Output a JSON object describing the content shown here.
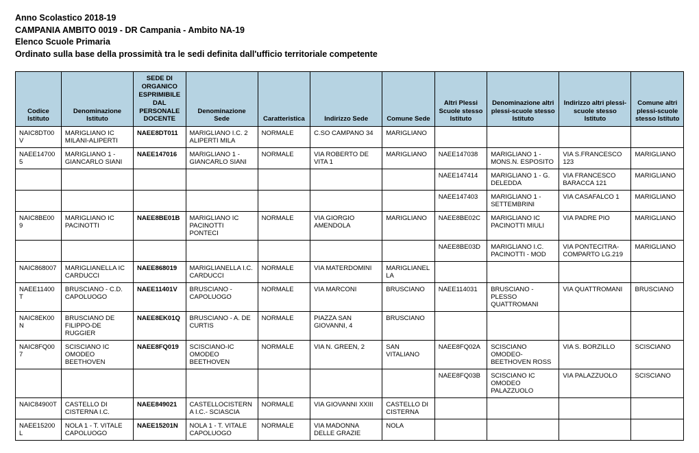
{
  "header": {
    "line1": "Anno Scolastico 2018-19",
    "line2": "CAMPANIA AMBITO 0019 - DR Campania - Ambito NA-19",
    "line3": "Elenco Scuole Primaria",
    "line4": "Ordinato sulla base della prossimità tra le sedi definita dall'ufficio territoriale competente"
  },
  "table": {
    "columns": [
      "Codice Istituto",
      "Denominazione Istituto",
      "SEDE DI ORGANICO ESPRIMIBILE DAL PERSONALE DOCENTE",
      "Denominazione Sede",
      "Caratteristica",
      "Indirizzo Sede",
      "Comune Sede",
      "Altri Plessi Scuole stesso Istituto",
      "Denominazione altri plessi-scuole stesso Istituto",
      "Indirizzo altri plessi-scuole stesso Istituto",
      "Comune altri plessi-scuole stesso Istituto"
    ],
    "rows": [
      [
        "NAIC8DT00V",
        "MARIGLIANO IC MILANI-ALIPERTI",
        "NAEE8DT011",
        "MARIGLIANO I.C. 2 ALIPERTI MILA",
        "NORMALE",
        "C.SO CAMPANO 34",
        "MARIGLIANO",
        "",
        "",
        "",
        ""
      ],
      [
        "NAEE147005",
        "MARIGLIANO 1 - GIANCARLO SIANI",
        "NAEE147016",
        "MARIGLIANO 1 - GIANCARLO SIANI",
        "NORMALE",
        "VIA ROBERTO DE VITA 1",
        "MARIGLIANO",
        "NAEE147038",
        "MARIGLIANO 1 - MONS.N. ESPOSITO",
        "VIA S.FRANCESCO 123",
        "MARIGLIANO"
      ],
      [
        "",
        "",
        "",
        "",
        "",
        "",
        "",
        "NAEE147414",
        "MARIGLIANO 1 - G. DELEDDA",
        "VIA FRANCESCO BARACCA 121",
        "MARIGLIANO"
      ],
      [
        "",
        "",
        "",
        "",
        "",
        "",
        "",
        "NAEE147403",
        "MARIGLIANO 1 - SETTEMBRINI",
        "VIA CASAFALCO 1",
        "MARIGLIANO"
      ],
      [
        "NAIC8BE009",
        "MARIGLIANO IC PACINOTTI",
        "NAEE8BE01B",
        "MARIGLIANO IC PACINOTTI PONTECI",
        "NORMALE",
        "VIA GIORGIO AMENDOLA",
        "MARIGLIANO",
        "NAEE8BE02C",
        "MARIGLIANO IC PACINOTTI MIULI",
        "VIA PADRE PIO",
        "MARIGLIANO"
      ],
      [
        "",
        "",
        "",
        "",
        "",
        "",
        "",
        "NAEE8BE03D",
        "MARIGLIANO I.C. PACINOTTI - MOD",
        "VIA PONTECITRA-COMPARTO LG.219",
        "MARIGLIANO"
      ],
      [
        "NAIC868007",
        "MARIGLIANELLA IC CARDUCCI",
        "NAEE868019",
        "MARIGLIANELLA I.C. CARDUCCI",
        "NORMALE",
        "VIA MATERDOMINI",
        "MARIGLIANELLA",
        "",
        "",
        "",
        ""
      ],
      [
        "NAEE11400T",
        "BRUSCIANO - C.D. CAPOLUOGO",
        "NAEE11401V",
        "BRUSCIANO - CAPOLUOGO",
        "NORMALE",
        "VIA MARCONI",
        "BRUSCIANO",
        "NAEE114031",
        "BRUSCIANO - PLESSO QUATTROMANI",
        "VIA QUATTROMANI",
        "BRUSCIANO"
      ],
      [
        "NAIC8EK00N",
        "BRUSCIANO DE FILIPPO-DE RUGGIER",
        "NAEE8EK01Q",
        "BRUSCIANO - A. DE CURTIS",
        "NORMALE",
        "PIAZZA SAN GIOVANNI, 4",
        "BRUSCIANO",
        "",
        "",
        "",
        ""
      ],
      [
        "NAIC8FQ007",
        "SCISCIANO IC OMODEO BEETHOVEN",
        "NAEE8FQ019",
        "SCISCIANO-IC OMODEO BEETHOVEN",
        "NORMALE",
        "VIA N. GREEN, 2",
        "SAN VITALIANO",
        "NAEE8FQ02A",
        "SCISCIANO OMODEO-BEETHOVEN ROSS",
        "VIA S. BORZILLO",
        "SCISCIANO"
      ],
      [
        "",
        "",
        "",
        "",
        "",
        "",
        "",
        "NAEE8FQ03B",
        "SCISCIANO IC OMODEO PALAZZUOLO",
        "VIA PALAZZUOLO",
        "SCISCIANO"
      ],
      [
        "NAIC84900T",
        "CASTELLO DI CISTERNA I.C.",
        "NAEE849021",
        "CASTELLOCISTERNA I.C.- SCIASCIA",
        "NORMALE",
        "VIA GIOVANNI XXIII",
        "CASTELLO DI CISTERNA",
        "",
        "",
        "",
        ""
      ],
      [
        "NAEE15200L",
        "NOLA 1 - T. VITALE CAPOLUOGO",
        "NAEE15201N",
        "NOLA 1 - T. VITALE CAPOLUOGO",
        "NORMALE",
        "VIA MADONNA DELLE GRAZIE",
        "NOLA",
        "",
        "",
        "",
        ""
      ]
    ],
    "header_bg": "#b6d3e2",
    "border_color": "#000000",
    "font_family": "Arial",
    "header_fontsize_pt": 9.5,
    "cell_fontsize_pt": 9.5,
    "title_fontsize_pt": 12.5,
    "col_widths_pct": [
      7,
      11,
      8,
      11,
      8,
      11,
      8,
      8,
      11,
      11,
      8
    ]
  }
}
